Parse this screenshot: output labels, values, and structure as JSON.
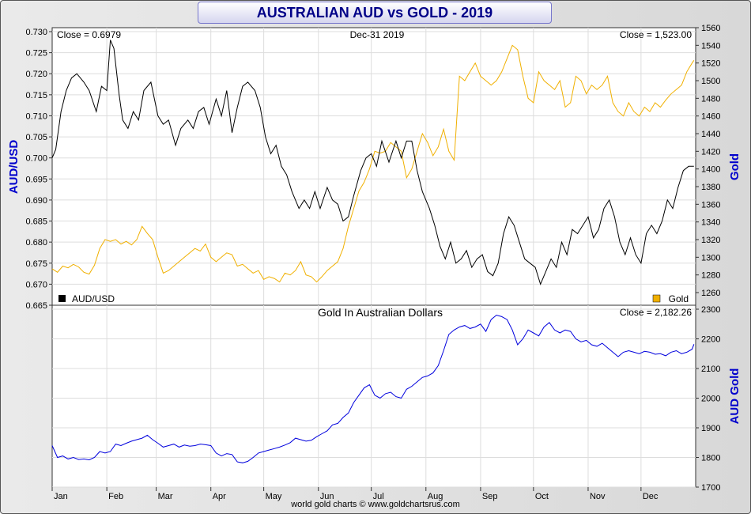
{
  "title": "AUSTRALIAN AUD vs GOLD - 2019",
  "footer": "world gold charts © www.goldchartsrus.com",
  "colors": {
    "aud": "#000000",
    "gold": "#f0b000",
    "aud_gold": "#0000dd",
    "axis_label": "#0000cc",
    "grid": "#dddddd"
  },
  "chart_data": [
    {
      "type": "line",
      "panel": "top",
      "header_left": "Close = 0.6979",
      "header_center": "Dec-31  2019",
      "header_right": "Close = 1,523.00",
      "ylabel_left": "AUD/USD",
      "ylabel_right": "Gold",
      "ylim_left": [
        0.665,
        0.73
      ],
      "ylim_right": [
        1260,
        1560
      ],
      "yticks_left": [
        "0.665",
        "0.670",
        "0.675",
        "0.680",
        "0.685",
        "0.690",
        "0.695",
        "0.700",
        "0.705",
        "0.710",
        "0.715",
        "0.720",
        "0.725",
        "0.730"
      ],
      "yticks_right": [
        "1260",
        "1280",
        "1300",
        "1320",
        "1340",
        "1360",
        "1380",
        "1400",
        "1420",
        "1440",
        "1460",
        "1480",
        "1500",
        "1520",
        "1540",
        "1560"
      ],
      "legend": {
        "left": "AUD/USD",
        "right": "Gold"
      },
      "grid": true,
      "series": [
        {
          "name": "AUD/USD",
          "axis": "left",
          "x": [
            0,
            2,
            5,
            8,
            11,
            14,
            18,
            21,
            25,
            28,
            31,
            33,
            35,
            38,
            40,
            43,
            46,
            49,
            52,
            56,
            60,
            63,
            66,
            70,
            73,
            77,
            80,
            83,
            86,
            89,
            93,
            96,
            99,
            102,
            105,
            108,
            111,
            115,
            118,
            121,
            124,
            127,
            130,
            133,
            136,
            140,
            143,
            146,
            149,
            152,
            156,
            159,
            162,
            165,
            168,
            171,
            175,
            178,
            181,
            184,
            187,
            191,
            195,
            198,
            201,
            204,
            207,
            210,
            214,
            217,
            220,
            223,
            226,
            229,
            232,
            235,
            238,
            241,
            244,
            247,
            250,
            253,
            256,
            259,
            262,
            265,
            268,
            271,
            274,
            277,
            280,
            283,
            286,
            289,
            292,
            295,
            298,
            301,
            304,
            307,
            310,
            313,
            316,
            319,
            322,
            325,
            328,
            331,
            334,
            337,
            340,
            343,
            346,
            349,
            352,
            355,
            358,
            361,
            364
          ],
          "y": [
            0.7,
            0.702,
            0.711,
            0.716,
            0.719,
            0.72,
            0.718,
            0.716,
            0.711,
            0.717,
            0.716,
            0.728,
            0.726,
            0.715,
            0.709,
            0.707,
            0.711,
            0.709,
            0.716,
            0.718,
            0.71,
            0.708,
            0.709,
            0.703,
            0.707,
            0.709,
            0.707,
            0.711,
            0.712,
            0.708,
            0.714,
            0.71,
            0.716,
            0.706,
            0.712,
            0.717,
            0.718,
            0.716,
            0.712,
            0.705,
            0.701,
            0.703,
            0.698,
            0.696,
            0.692,
            0.688,
            0.69,
            0.688,
            0.692,
            0.688,
            0.693,
            0.69,
            0.689,
            0.685,
            0.686,
            0.691,
            0.697,
            0.7,
            0.701,
            0.698,
            0.704,
            0.699,
            0.704,
            0.7,
            0.704,
            0.704,
            0.697,
            0.692,
            0.688,
            0.684,
            0.679,
            0.676,
            0.68,
            0.675,
            0.676,
            0.678,
            0.674,
            0.676,
            0.677,
            0.673,
            0.672,
            0.675,
            0.682,
            0.686,
            0.684,
            0.68,
            0.676,
            0.675,
            0.674,
            0.67,
            0.673,
            0.676,
            0.674,
            0.68,
            0.677,
            0.683,
            0.682,
            0.684,
            0.686,
            0.681,
            0.683,
            0.688,
            0.69,
            0.686,
            0.68,
            0.677,
            0.681,
            0.677,
            0.675,
            0.682,
            0.684,
            0.682,
            0.685,
            0.69,
            0.688,
            0.693,
            0.697,
            0.698,
            0.698
          ]
        },
        {
          "name": "Gold",
          "axis": "right",
          "x": [
            0,
            3,
            6,
            9,
            12,
            15,
            18,
            21,
            24,
            27,
            30,
            33,
            36,
            39,
            42,
            45,
            48,
            51,
            54,
            57,
            60,
            63,
            66,
            69,
            72,
            75,
            78,
            81,
            84,
            87,
            90,
            93,
            96,
            99,
            102,
            105,
            108,
            111,
            114,
            117,
            120,
            123,
            126,
            129,
            132,
            135,
            138,
            141,
            144,
            147,
            150,
            153,
            156,
            159,
            162,
            165,
            168,
            171,
            174,
            177,
            180,
            183,
            186,
            189,
            192,
            195,
            198,
            201,
            204,
            207,
            210,
            213,
            216,
            219,
            222,
            225,
            228,
            231,
            234,
            237,
            240,
            243,
            246,
            249,
            252,
            255,
            258,
            261,
            264,
            267,
            270,
            273,
            276,
            279,
            282,
            285,
            288,
            291,
            294,
            297,
            300,
            303,
            306,
            309,
            312,
            315,
            318,
            321,
            324,
            327,
            330,
            333,
            336,
            339,
            342,
            345,
            348,
            351,
            354,
            357,
            360,
            363,
            364
          ],
          "y": [
            1287,
            1283,
            1290,
            1288,
            1292,
            1289,
            1283,
            1281,
            1291,
            1310,
            1320,
            1318,
            1320,
            1315,
            1318,
            1314,
            1320,
            1335,
            1327,
            1320,
            1300,
            1282,
            1285,
            1290,
            1295,
            1300,
            1305,
            1310,
            1307,
            1315,
            1300,
            1295,
            1300,
            1305,
            1303,
            1290,
            1292,
            1287,
            1282,
            1285,
            1275,
            1278,
            1276,
            1272,
            1282,
            1280,
            1285,
            1295,
            1280,
            1278,
            1272,
            1278,
            1285,
            1290,
            1295,
            1310,
            1335,
            1355,
            1375,
            1385,
            1400,
            1420,
            1418,
            1420,
            1430,
            1425,
            1420,
            1390,
            1400,
            1420,
            1440,
            1430,
            1415,
            1425,
            1445,
            1420,
            1410,
            1505,
            1500,
            1510,
            1520,
            1505,
            1500,
            1495,
            1500,
            1510,
            1525,
            1540,
            1535,
            1505,
            1480,
            1475,
            1510,
            1500,
            1495,
            1490,
            1500,
            1470,
            1475,
            1505,
            1500,
            1485,
            1495,
            1490,
            1495,
            1505,
            1475,
            1465,
            1460,
            1475,
            1465,
            1460,
            1470,
            1465,
            1475,
            1470,
            1478,
            1485,
            1490,
            1495,
            1510,
            1520,
            1523
          ]
        }
      ]
    },
    {
      "type": "line",
      "panel": "bottom",
      "title": "Gold In Australian Dollars",
      "header_right": "Close = 2,182.26",
      "ylabel_right": "AUD Gold",
      "ylim": [
        1700,
        2300
      ],
      "yticks": [
        "1700",
        "1800",
        "1900",
        "2000",
        "2100",
        "2200",
        "2300"
      ],
      "xticks": [
        "Jan",
        "Feb",
        "Mar",
        "Apr",
        "May",
        "Jun",
        "Jul",
        "Aug",
        "Sep",
        "Oct",
        "Nov",
        "Dec"
      ],
      "grid": true,
      "series": [
        {
          "name": "Gold In Australian Dollars",
          "x": [
            0,
            3,
            6,
            9,
            12,
            15,
            18,
            21,
            24,
            27,
            30,
            33,
            36,
            39,
            42,
            45,
            48,
            51,
            54,
            57,
            60,
            63,
            66,
            69,
            72,
            75,
            78,
            81,
            84,
            87,
            90,
            93,
            96,
            99,
            102,
            105,
            108,
            111,
            114,
            117,
            120,
            123,
            126,
            129,
            132,
            135,
            138,
            141,
            144,
            147,
            150,
            153,
            156,
            159,
            162,
            165,
            168,
            171,
            174,
            177,
            180,
            183,
            186,
            189,
            192,
            195,
            198,
            201,
            204,
            207,
            210,
            213,
            216,
            219,
            222,
            225,
            228,
            231,
            234,
            237,
            240,
            243,
            246,
            249,
            252,
            255,
            258,
            261,
            264,
            267,
            270,
            273,
            276,
            279,
            282,
            285,
            288,
            291,
            294,
            297,
            300,
            303,
            306,
            309,
            312,
            315,
            318,
            321,
            324,
            327,
            330,
            333,
            336,
            339,
            342,
            345,
            348,
            351,
            354,
            357,
            360,
            363,
            364
          ],
          "y": [
            1840,
            1800,
            1805,
            1795,
            1800,
            1793,
            1795,
            1792,
            1800,
            1820,
            1815,
            1820,
            1845,
            1840,
            1848,
            1855,
            1860,
            1865,
            1875,
            1860,
            1848,
            1835,
            1840,
            1845,
            1835,
            1842,
            1838,
            1840,
            1845,
            1843,
            1840,
            1815,
            1805,
            1813,
            1810,
            1785,
            1782,
            1787,
            1800,
            1815,
            1820,
            1825,
            1830,
            1835,
            1842,
            1850,
            1865,
            1860,
            1855,
            1858,
            1870,
            1880,
            1890,
            1910,
            1915,
            1935,
            1950,
            1985,
            2010,
            2035,
            2045,
            2010,
            2000,
            2015,
            2020,
            2005,
            2000,
            2030,
            2040,
            2055,
            2070,
            2075,
            2085,
            2110,
            2160,
            2215,
            2230,
            2240,
            2245,
            2235,
            2240,
            2250,
            2225,
            2265,
            2280,
            2275,
            2265,
            2230,
            2180,
            2200,
            2230,
            2220,
            2210,
            2240,
            2255,
            2230,
            2220,
            2230,
            2225,
            2200,
            2190,
            2195,
            2180,
            2175,
            2185,
            2170,
            2155,
            2140,
            2155,
            2160,
            2155,
            2150,
            2158,
            2155,
            2148,
            2150,
            2143,
            2155,
            2160,
            2150,
            2155,
            2165,
            2182
          ]
        }
      ]
    }
  ]
}
